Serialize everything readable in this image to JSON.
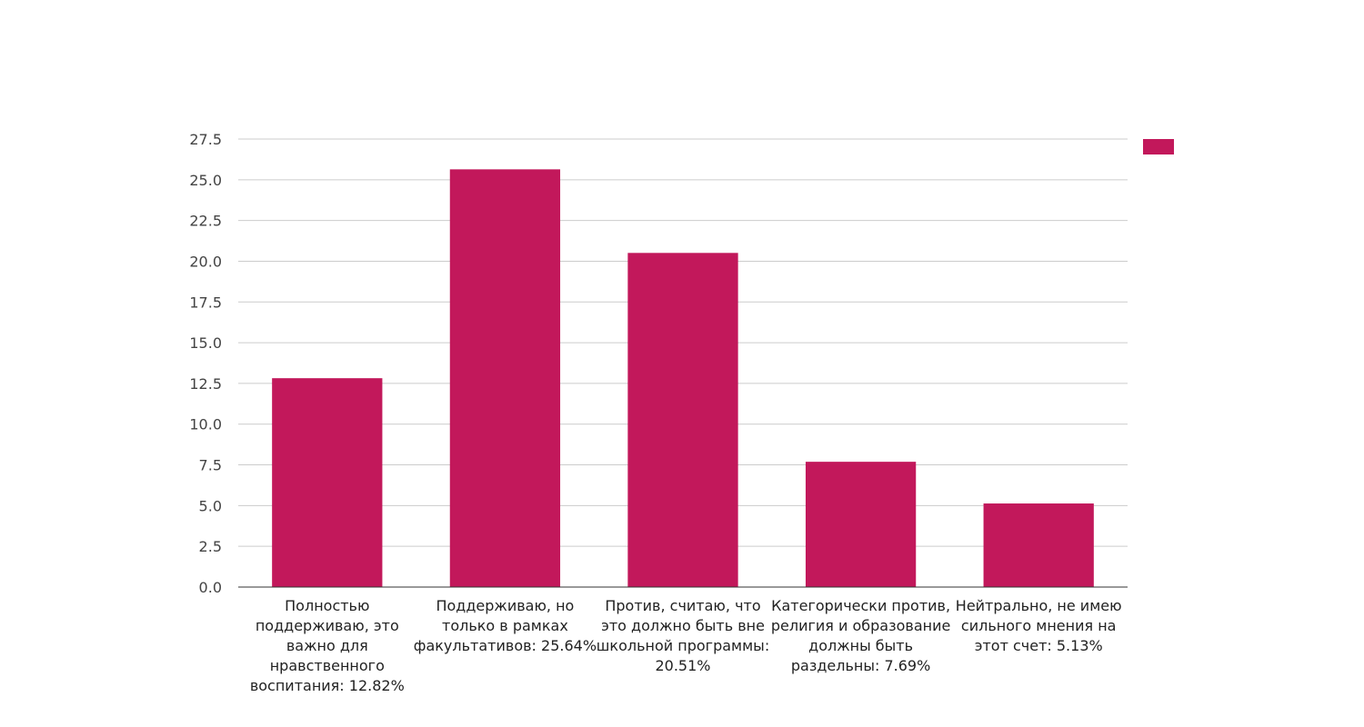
{
  "chart_data": {
    "type": "bar",
    "title": "",
    "xlabel": "",
    "ylabel": "",
    "ylim": [
      0,
      27.5
    ],
    "yticks": [
      "0.0",
      "2.5",
      "5.0",
      "7.5",
      "10.0",
      "12.5",
      "15.0",
      "17.5",
      "20.0",
      "22.5",
      "25.0",
      "27.5"
    ],
    "grid": true,
    "legend": {
      "position": "top-right",
      "entries": [
        ""
      ]
    },
    "colors": {
      "bar": "#c2185b"
    },
    "categories": [
      [
        "Полностью",
        "поддерживаю, это",
        "важно для",
        "нравственного",
        "воспитания: 12.82%"
      ],
      [
        "Поддерживаю, но",
        "только в рамках",
        "факультативов: 25.64%"
      ],
      [
        "Против, считаю, что",
        "это должно быть вне",
        "школьной программы:",
        "20.51%"
      ],
      [
        "Категорически против,",
        "религия и образование",
        "должны быть",
        "раздельны: 7.69%"
      ],
      [
        "Нейтрально, не имею",
        "сильного мнения на",
        "этот счет: 5.13%"
      ]
    ],
    "values": [
      12.82,
      25.64,
      20.51,
      7.69,
      5.13
    ]
  }
}
